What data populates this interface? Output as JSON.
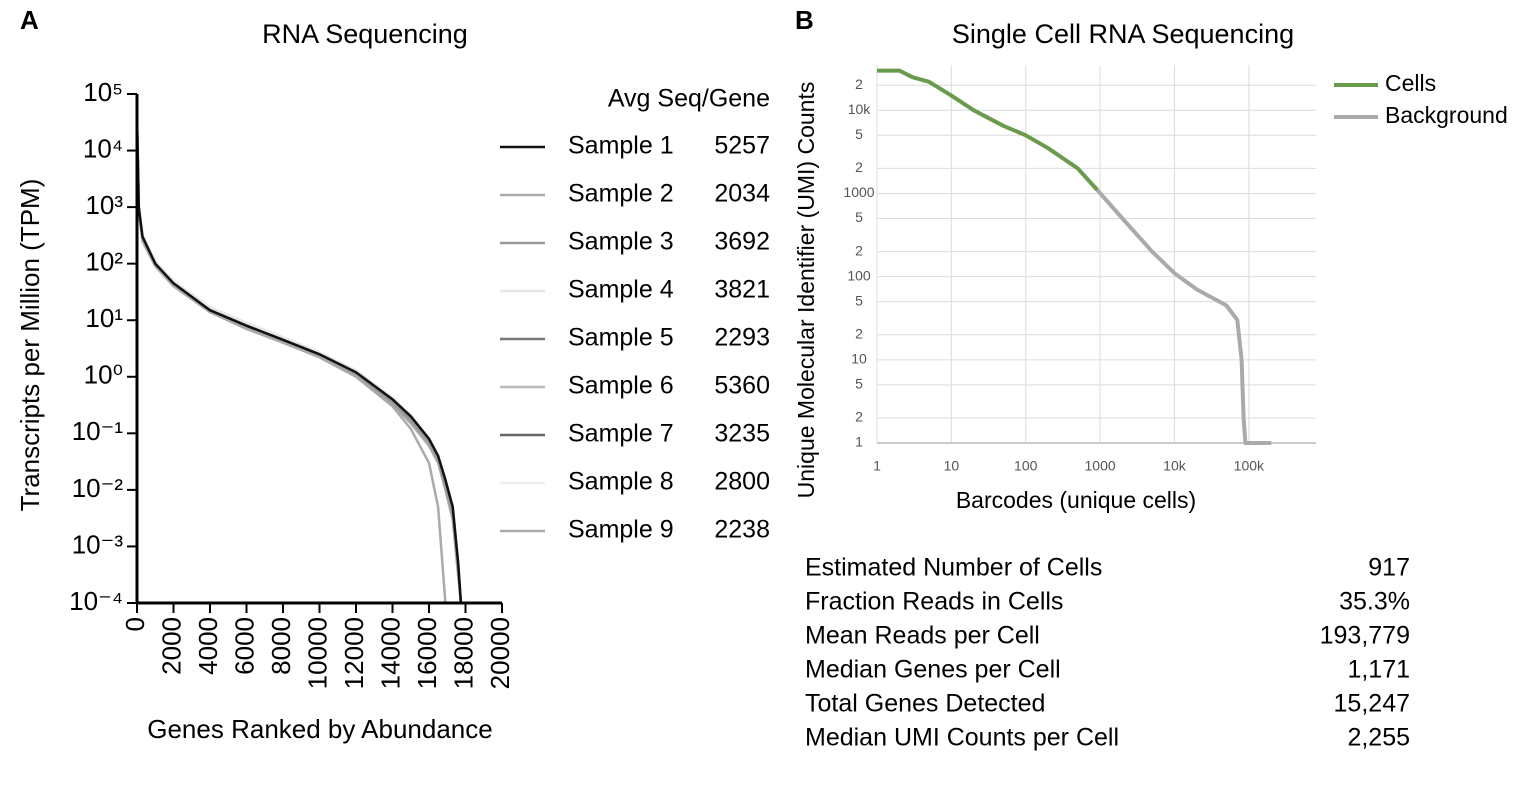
{
  "chart_data": [
    {
      "type": "line",
      "label": "A",
      "title": "RNA Sequencing",
      "x_label": "Genes Ranked by Abundance",
      "y_label": "Transcripts per Million (TPM)",
      "log_y": true,
      "xlim": [
        0,
        20000
      ],
      "ylim": [
        0.0001,
        100000
      ],
      "xticks": [
        0,
        2000,
        4000,
        6000,
        8000,
        10000,
        12000,
        14000,
        16000,
        18000,
        20000
      ],
      "yticks": [
        {
          "value": 100000,
          "label": "10⁵"
        },
        {
          "value": 10000,
          "label": "10⁴"
        },
        {
          "value": 1000,
          "label": "10³"
        },
        {
          "value": 100,
          "label": "10²"
        },
        {
          "value": 10,
          "label": "10¹"
        },
        {
          "value": 1,
          "label": "10⁰"
        },
        {
          "value": 0.1,
          "label": "10⁻¹"
        },
        {
          "value": 0.01,
          "label": "10⁻²"
        },
        {
          "value": 0.001,
          "label": "10⁻³"
        },
        {
          "value": 0.0001,
          "label": "10⁻⁴"
        }
      ],
      "legend_title": "Avg Seq/Gene",
      "x": [
        0,
        100,
        300,
        1000,
        2000,
        4000,
        6000,
        8000,
        10000,
        12000,
        14000,
        15000,
        16000,
        16500,
        16900,
        17300,
        17600,
        17750
      ],
      "series": [
        {
          "name": "Sample 1",
          "avg_seq_gene": 5257,
          "color": "#111111",
          "values": [
            40000,
            1000,
            300,
            100,
            45,
            15,
            8,
            4.5,
            2.5,
            1.2,
            0.4,
            0.2,
            0.08,
            0.04,
            0.015,
            0.005,
            0.0005,
            0.0001
          ]
        },
        {
          "name": "Sample 2",
          "avg_seq_gene": 2034,
          "color": "#aaaaaa",
          "values": [
            30000,
            800,
            250,
            90,
            40,
            14,
            7,
            4,
            2.2,
            1,
            0.3,
            0.12,
            0.03,
            0.005,
            0.0001,
            null,
            null,
            null
          ]
        },
        {
          "name": "Sample 3",
          "avg_seq_gene": 3692,
          "color": "#999999",
          "values": [
            35000,
            900,
            280,
            95,
            42,
            14,
            7.5,
            4.2,
            2.3,
            1.1,
            0.35,
            0.17,
            0.07,
            0.035,
            0.012,
            0.004,
            0.0004,
            0.0001
          ]
        },
        {
          "name": "Sample 4",
          "avg_seq_gene": 3821,
          "color": "#e6e6e6",
          "values": [
            38000,
            1100,
            330,
            110,
            50,
            17,
            9,
            5,
            2.7,
            1.3,
            0.42,
            0.2,
            0.08,
            0.04,
            0.014,
            0.005,
            0.0005,
            0.0001
          ]
        },
        {
          "name": "Sample 5",
          "avg_seq_gene": 2293,
          "color": "#777777",
          "values": [
            36000,
            950,
            290,
            98,
            44,
            15,
            7.8,
            4.4,
            2.4,
            1.15,
            0.38,
            0.19,
            0.075,
            0.038,
            0.013,
            0.0045,
            0.00045,
            0.0001
          ]
        },
        {
          "name": "Sample 6",
          "avg_seq_gene": 5360,
          "color": "#bbbbbb",
          "values": [
            33000,
            1000,
            310,
            105,
            46,
            16,
            8.2,
            4.6,
            2.6,
            1.25,
            0.41,
            0.2,
            0.08,
            0.04,
            0.015,
            0.005,
            0.0005,
            0.0001
          ]
        },
        {
          "name": "Sample 7",
          "avg_seq_gene": 3235,
          "color": "#666666",
          "values": [
            34000,
            980,
            300,
            100,
            45,
            15,
            8,
            4.5,
            2.5,
            1.2,
            0.4,
            0.2,
            0.078,
            0.039,
            0.014,
            0.005,
            0.0005,
            0.0001
          ]
        },
        {
          "name": "Sample 8",
          "avg_seq_gene": 2800,
          "color": "#eeeeee",
          "values": [
            32000,
            1050,
            320,
            108,
            48,
            16,
            8.5,
            4.8,
            2.6,
            1.3,
            0.42,
            0.21,
            0.082,
            0.04,
            0.015,
            0.005,
            0.0005,
            0.0001
          ]
        },
        {
          "name": "Sample 9",
          "avg_seq_gene": 2238,
          "color": "#aaaaaa",
          "values": [
            31000,
            850,
            260,
            92,
            41,
            14,
            7.2,
            4.1,
            2.3,
            1.05,
            0.33,
            0.15,
            0.06,
            0.03,
            0.01,
            0.003,
            0.0003,
            0.0001
          ]
        }
      ]
    },
    {
      "type": "line",
      "label": "B",
      "title": "Single Cell RNA Sequencing",
      "x_label": "Barcodes (unique cells)",
      "y_label": "Unique Molecular Identifier (UMI) Counts",
      "log_x": true,
      "log_y": true,
      "grid": true,
      "xlim": [
        1,
        800000
      ],
      "ylim": [
        1,
        35000
      ],
      "xticks": [
        1,
        10,
        100,
        1000,
        {
          "value": 10000,
          "label": "10k"
        },
        {
          "value": 100000,
          "label": "100k"
        }
      ],
      "yticks": [
        1,
        2,
        5,
        10,
        {
          "value": 20,
          "label": "2"
        },
        {
          "value": 50,
          "label": "5"
        },
        100,
        {
          "value": 200,
          "label": "2"
        },
        {
          "value": 500,
          "label": "5"
        },
        1000,
        {
          "value": 2000,
          "label": "2"
        },
        {
          "value": 5000,
          "label": "5"
        },
        {
          "value": 10000,
          "label": "10k"
        },
        {
          "value": 20000,
          "label": "2"
        }
      ],
      "legend": "top-right",
      "series": [
        {
          "name": "Cells",
          "color": "#6a9a4c",
          "x": [
            1,
            2,
            3,
            5,
            10,
            20,
            50,
            100,
            200,
            500,
            917
          ],
          "values": [
            30000,
            30000,
            25000,
            22000,
            15000,
            10000,
            6500,
            5000,
            3500,
            2000,
            1100
          ]
        },
        {
          "name": "Background",
          "color": "#aaaaaa",
          "x": [
            917,
            2000,
            5000,
            10000,
            20000,
            50000,
            70000,
            80000,
            85000,
            90000,
            100000,
            200000
          ],
          "values": [
            1100,
            500,
            200,
            110,
            70,
            45,
            30,
            10,
            2,
            1,
            1,
            1
          ]
        }
      ]
    }
  ],
  "stats": {
    "rows": [
      [
        "Estimated Number of Cells",
        "917"
      ],
      [
        "Fraction Reads in Cells",
        "35.3%"
      ],
      [
        "Mean Reads per Cell",
        "193,779"
      ],
      [
        "Median Genes per Cell",
        "1,171"
      ],
      [
        "Total Genes Detected",
        "15,247"
      ],
      [
        "Median UMI Counts per Cell",
        "2,255"
      ]
    ]
  }
}
